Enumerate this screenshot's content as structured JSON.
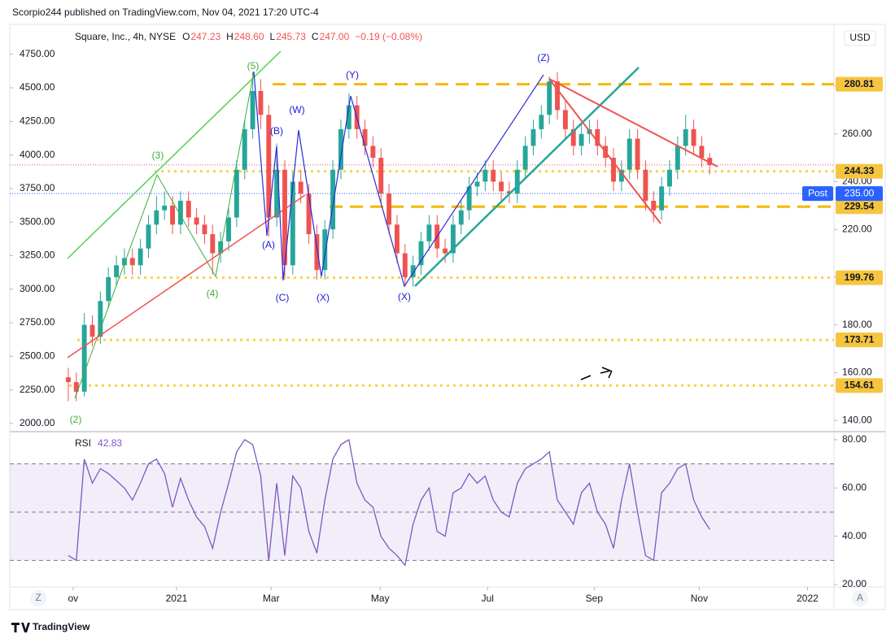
{
  "header": {
    "text": "Scorpio244 published on TradingView.com, Nov 04, 2021 17:20 UTC-4"
  },
  "chart_data": {
    "type": "candlestick",
    "symbol": "Square, Inc., 4h, NYSE",
    "ohlc_legend": [
      {
        "key": "O",
        "value": 247.23
      },
      {
        "key": "H",
        "value": {
          "value": 248.6,
          "label": "248.60"
        }
      },
      {
        "key": "L",
        "value": 245.73
      },
      {
        "key": "C",
        "value": {
          "value": 247,
          "label": "247.00"
        }
      },
      {
        "key": "",
        "value": "−0.19 (−0.08%)"
      }
    ],
    "currency": "USD",
    "open": [
      158,
      156,
      152,
      180,
      175,
      190,
      200,
      205,
      208,
      205,
      212,
      222,
      228,
      230,
      222,
      232,
      225,
      222,
      218,
      210,
      215,
      225,
      245,
      262,
      278,
      268,
      225,
      245,
      205,
      240,
      235,
      218,
      203,
      220,
      245,
      262,
      272,
      262,
      255,
      250,
      235,
      222,
      210,
      200,
      205,
      215,
      222,
      212,
      210,
      222,
      228,
      238,
      240,
      245,
      240,
      236,
      235,
      245,
      255,
      262,
      268,
      282,
      270,
      262,
      255,
      260,
      262,
      255,
      250,
      240,
      245,
      258,
      245,
      232,
      228,
      238,
      245,
      255,
      262,
      255,
      250
    ],
    "high": [
      162,
      160,
      185,
      184,
      194,
      204,
      209,
      212,
      212,
      216,
      226,
      234,
      236,
      234,
      236,
      236,
      229,
      226,
      222,
      219,
      229,
      249,
      266,
      286,
      283,
      272,
      256,
      249,
      244,
      245,
      239,
      222,
      224,
      249,
      266,
      277,
      276,
      266,
      259,
      254,
      239,
      226,
      214,
      209,
      219,
      226,
      226,
      216,
      226,
      232,
      242,
      244,
      249,
      249,
      244,
      240,
      249,
      259,
      266,
      272,
      284,
      286,
      274,
      266,
      264,
      266,
      266,
      259,
      254,
      249,
      262,
      262,
      249,
      236,
      242,
      249,
      259,
      268,
      266,
      259,
      252
    ],
    "low": [
      148,
      148,
      150,
      171,
      172,
      187,
      196,
      201,
      201,
      201,
      208,
      218,
      224,
      218,
      218,
      221,
      218,
      214,
      201,
      206,
      211,
      221,
      241,
      258,
      262,
      217,
      221,
      199,
      201,
      231,
      214,
      199,
      199,
      216,
      241,
      258,
      258,
      251,
      246,
      231,
      218,
      206,
      196,
      196,
      201,
      211,
      208,
      206,
      206,
      218,
      224,
      234,
      236,
      236,
      232,
      231,
      231,
      241,
      251,
      258,
      264,
      266,
      258,
      251,
      251,
      256,
      251,
      246,
      236,
      236,
      241,
      241,
      228,
      223,
      224,
      234,
      241,
      251,
      251,
      246,
      243
    ],
    "close": [
      156,
      152,
      180,
      175,
      190,
      200,
      205,
      208,
      205,
      212,
      222,
      228,
      230,
      222,
      232,
      225,
      222,
      218,
      210,
      215,
      225,
      245,
      262,
      278,
      268,
      225,
      245,
      205,
      240,
      235,
      218,
      203,
      220,
      245,
      262,
      272,
      262,
      255,
      250,
      235,
      222,
      210,
      200,
      205,
      215,
      222,
      212,
      210,
      222,
      228,
      238,
      240,
      245,
      240,
      236,
      235,
      245,
      255,
      262,
      268,
      282,
      270,
      262,
      255,
      260,
      262,
      255,
      250,
      240,
      245,
      258,
      245,
      232,
      228,
      238,
      245,
      255,
      262,
      255,
      250,
      247
    ],
    "up_color": "#26a69a",
    "down_color": "#ef5350",
    "xlim": [
      -7.3,
      95.5
    ],
    "xticks": [
      {
        "value": 0.6,
        "label": "ov"
      },
      {
        "value": 13.5,
        "label": "2021"
      },
      {
        "value": 25.3,
        "label": "Mar"
      },
      {
        "value": 38.9,
        "label": "May"
      },
      {
        "value": 52.3,
        "label": "Jul"
      },
      {
        "value": 65.6,
        "label": "Sep"
      },
      {
        "value": 78.7,
        "label": "Nov"
      },
      {
        "value": 92.2,
        "label": "2022"
      }
    ],
    "ylim": [
      1945,
      4942
    ],
    "yticks": [
      {
        "value": 2000,
        "label": "2000.00"
      },
      {
        "value": 2250,
        "label": "2250.00"
      },
      {
        "value": 2500,
        "label": "2500.00"
      },
      {
        "value": 2750,
        "label": "2750.00"
      },
      {
        "value": 3000,
        "label": "3000.00"
      },
      {
        "value": 3250,
        "label": "3250.00"
      },
      {
        "value": 3500,
        "label": "3500.00"
      },
      {
        "value": 3750,
        "label": "3750.00"
      },
      {
        "value": 4000,
        "label": "4000.00"
      },
      {
        "value": 4250,
        "label": "4250.00"
      },
      {
        "value": 4500,
        "label": "4500.00"
      },
      {
        "value": 4750,
        "label": "4750.00"
      }
    ],
    "y2lim": [
      135.6,
      304.2
    ],
    "y2ticks": [
      {
        "value": 140,
        "label": "140.00"
      },
      {
        "value": 160,
        "label": "160.00"
      },
      {
        "value": 180,
        "label": "180.00"
      },
      {
        "value": 200,
        "label": "200.00"
      },
      {
        "value": 220,
        "label": "220.00"
      },
      {
        "value": 240,
        "label": "240.00"
      },
      {
        "value": 260,
        "label": "260.00"
      },
      {
        "value": 280,
        "label": "280.00"
      }
    ],
    "levels": [
      {
        "value": 280.81,
        "style": "dashed",
        "color": "#f5b800"
      },
      {
        "value": 244.33,
        "style": "dotted",
        "color": "#f7d34a"
      },
      {
        "value": 229.54,
        "style": "dashed",
        "color": "#f5b800"
      },
      {
        "value": 199.76,
        "style": "dotted",
        "color": "#f7d34a"
      },
      {
        "value": 173.71,
        "style": "dotted",
        "color": "#f7d34a"
      },
      {
        "value": 154.61,
        "style": "dotted",
        "color": "#f7d34a"
      }
    ],
    "post": {
      "label": "Post",
      "price": {
        "value": 235,
        "label": "235.00"
      },
      "color": "#2962ff"
    },
    "annotations": [
      {
        "text": "(5)",
        "color": "#3cae3c"
      },
      {
        "text": "(3)",
        "color": "#3cae3c"
      },
      {
        "text": "(4)",
        "color": "#3cae3c"
      },
      {
        "text": "(2)",
        "color": "#3cae3c"
      },
      {
        "text": "(A)",
        "color": "#1a1adb"
      },
      {
        "text": "(B)",
        "color": "#1a1adb"
      },
      {
        "text": "(C)",
        "color": "#1a1adb"
      },
      {
        "text": "(W)",
        "color": "#1a1adb"
      },
      {
        "text": "(X)",
        "color": "#1a1adb"
      },
      {
        "text": "(Y)",
        "color": "#1a1adb"
      },
      {
        "text": "(X)",
        "color": "#1a1adb"
      },
      {
        "text": "(Z)",
        "color": "#1a1adb"
      }
    ],
    "rsi": {
      "name": "RSI",
      "color": "#7e57c2",
      "values": [
        32,
        30,
        72,
        62,
        68,
        66,
        63,
        60,
        55,
        62,
        70,
        72,
        66,
        52,
        64,
        55,
        48,
        44,
        35,
        50,
        62,
        75,
        80,
        78,
        65,
        30,
        62,
        32,
        65,
        60,
        42,
        33,
        55,
        72,
        78,
        80,
        62,
        55,
        52,
        40,
        35,
        32,
        28,
        45,
        55,
        60,
        42,
        40,
        58,
        60,
        66,
        62,
        65,
        55,
        50,
        48,
        62,
        68,
        70,
        72,
        75,
        55,
        50,
        45,
        58,
        62,
        50,
        45,
        35,
        55,
        70,
        50,
        32,
        30,
        58,
        62,
        68,
        70,
        55,
        48,
        42.83
      ],
      "ylim": [
        19,
        82
      ],
      "yticks": [
        {
          "value": 20,
          "label": "20.00"
        },
        {
          "value": 40,
          "label": "40.00"
        },
        {
          "value": 60,
          "label": "60.00"
        },
        {
          "value": 80,
          "label": "80.00"
        }
      ],
      "band": [
        30,
        70
      ],
      "mid": 50
    }
  },
  "buttons": {
    "left": "Z",
    "right": "A"
  },
  "footer": {
    "logo": "TradingView"
  }
}
